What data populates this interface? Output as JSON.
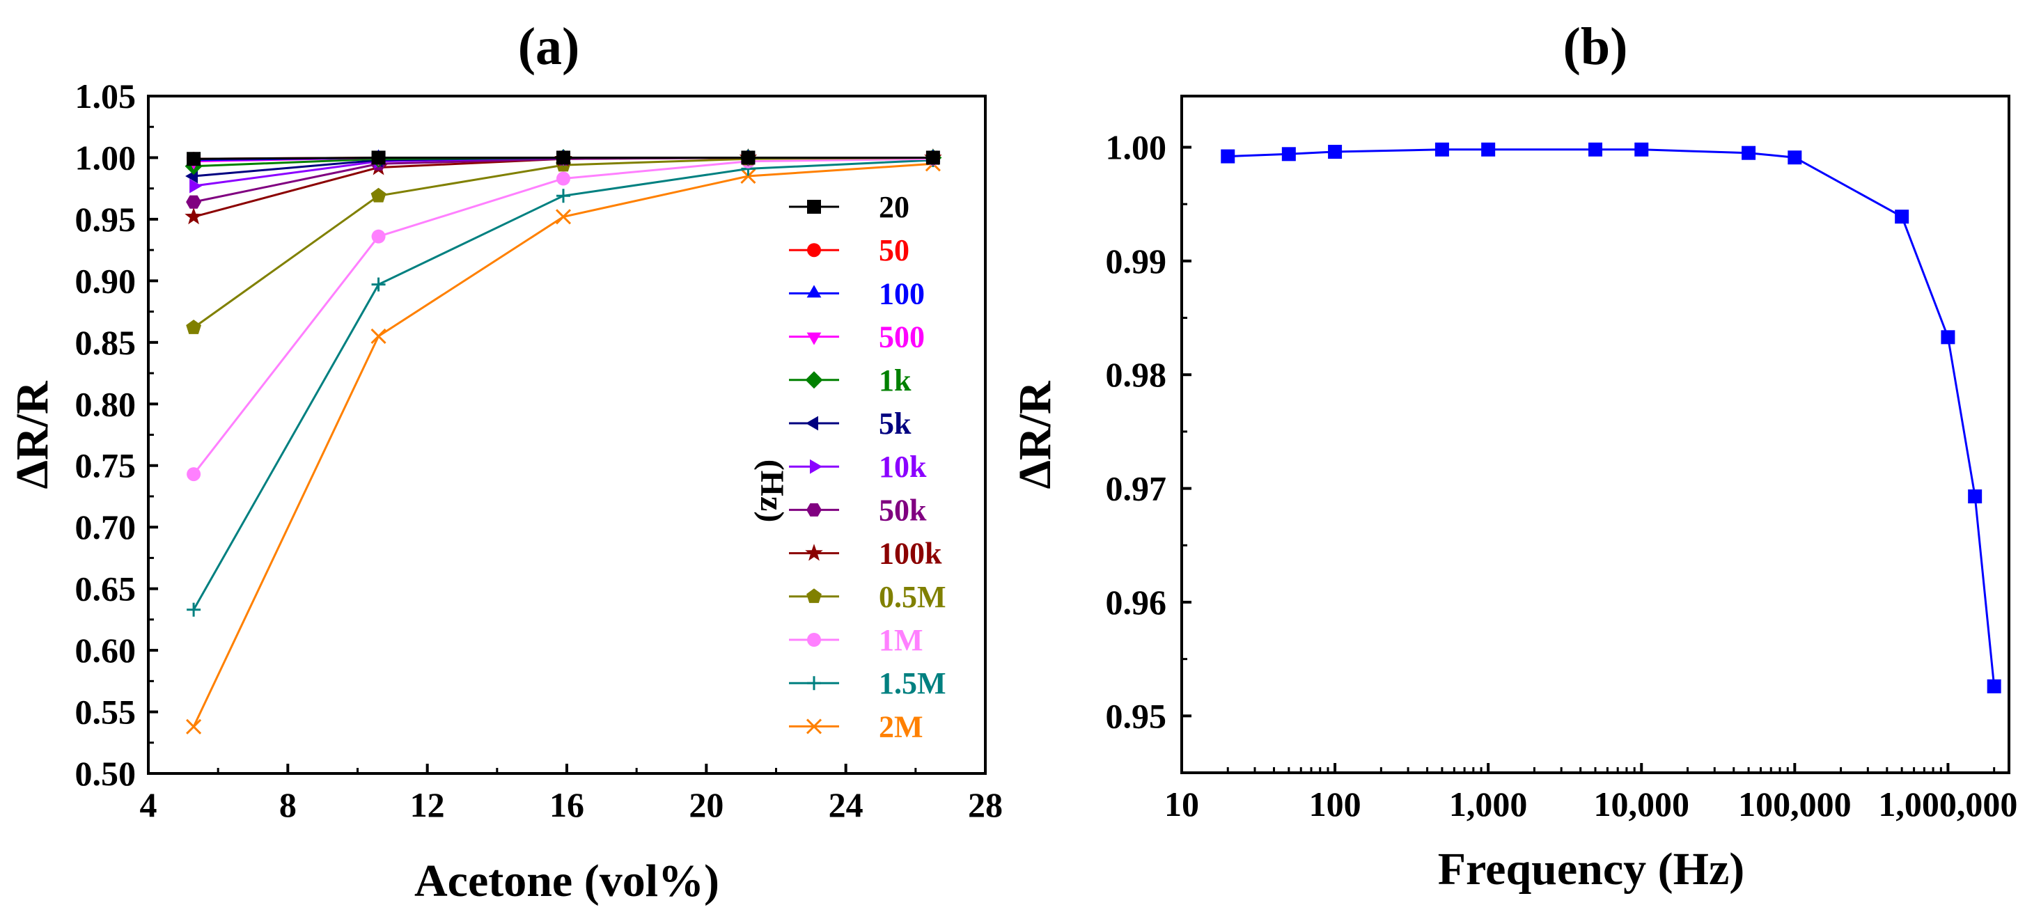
{
  "chart_data": [
    {
      "type": "line",
      "title": "(a)",
      "xlabel": "Acetone (vol%)",
      "ylabel": "ΔR/R",
      "xlim": [
        4,
        28
      ],
      "ylim": [
        0.5,
        1.05
      ],
      "xticks": [
        "4",
        "8",
        "12",
        "16",
        "20",
        "24",
        "28"
      ],
      "yticks": [
        "0.50",
        "0.55",
        "0.60",
        "0.65",
        "0.70",
        "0.75",
        "0.80",
        "0.85",
        "0.90",
        "0.95",
        "1.00",
        "1.05"
      ],
      "legend_unit": "(Hz)",
      "x": [
        5.3,
        10.6,
        15.9,
        21.2,
        26.5
      ],
      "series": [
        {
          "name": "20",
          "color": "#000000",
          "marker": "square",
          "values": [
            0.999,
            1.0,
            1.0,
            1.0,
            1.0
          ]
        },
        {
          "name": "50",
          "color": "#ff0000",
          "marker": "circle",
          "values": [
            0.999,
            1.0,
            1.0,
            1.0,
            1.0
          ]
        },
        {
          "name": "100",
          "color": "#0000ff",
          "marker": "triangle-up",
          "values": [
            0.998,
            1.0,
            1.0,
            1.0,
            1.0
          ]
        },
        {
          "name": "500",
          "color": "#ff00ff",
          "marker": "triangle-down",
          "values": [
            0.997,
            1.0,
            1.0,
            1.0,
            1.0
          ]
        },
        {
          "name": "1k",
          "color": "#008000",
          "marker": "diamond",
          "values": [
            0.993,
            0.999,
            1.0,
            1.0,
            1.0
          ]
        },
        {
          "name": "5k",
          "color": "#000080",
          "marker": "triangle-left",
          "values": [
            0.985,
            0.998,
            1.0,
            1.0,
            1.0
          ]
        },
        {
          "name": "10k",
          "color": "#8b00ff",
          "marker": "triangle-right",
          "values": [
            0.977,
            0.997,
            1.0,
            1.0,
            1.0
          ]
        },
        {
          "name": "50k",
          "color": "#800080",
          "marker": "hexagon",
          "values": [
            0.964,
            0.995,
            0.999,
            1.0,
            1.0
          ]
        },
        {
          "name": "100k",
          "color": "#8b0000",
          "marker": "star",
          "values": [
            0.952,
            0.992,
            0.999,
            1.0,
            1.0
          ]
        },
        {
          "name": "0.5M",
          "color": "#808000",
          "marker": "pentagon",
          "values": [
            0.862,
            0.969,
            0.994,
            0.999,
            1.0
          ]
        },
        {
          "name": "1M",
          "color": "#ff80ff",
          "marker": "circle",
          "values": [
            0.743,
            0.936,
            0.983,
            0.997,
            0.999
          ]
        },
        {
          "name": "1.5M",
          "color": "#008080",
          "marker": "plus",
          "values": [
            0.633,
            0.897,
            0.969,
            0.991,
            0.998
          ]
        },
        {
          "name": "2M",
          "color": "#ff8000",
          "marker": "x",
          "values": [
            0.538,
            0.855,
            0.952,
            0.985,
            0.995
          ]
        }
      ]
    },
    {
      "type": "line",
      "title": "(b)",
      "xlabel": "Frequency (Hz)",
      "ylabel": "ΔR/R",
      "xscale": "log",
      "xlim": [
        10,
        2500000
      ],
      "ylim": [
        0.945,
        1.0045
      ],
      "xticks": [
        {
          "v": 10,
          "label": "10"
        },
        {
          "v": 100,
          "label": "100"
        },
        {
          "v": 1000,
          "label": "1,000"
        },
        {
          "v": 10000,
          "label": "10,000"
        },
        {
          "v": 100000,
          "label": "100,000"
        },
        {
          "v": 1000000,
          "label": "1,000,000"
        }
      ],
      "yticks": [
        {
          "v": 0.95,
          "label": "0.95"
        },
        {
          "v": 0.96,
          "label": "0.96"
        },
        {
          "v": 0.97,
          "label": "0.97"
        },
        {
          "v": 0.98,
          "label": "0.98"
        },
        {
          "v": 0.99,
          "label": "0.99"
        },
        {
          "v": 1.0,
          "label": "1.00"
        }
      ],
      "series": [
        {
          "name": "ΔR/R",
          "color": "#0000ff",
          "marker": "square",
          "x": [
            20,
            50,
            100,
            500,
            1000,
            5000,
            10000,
            50000,
            100000,
            500000,
            1000000,
            1500000,
            2000000
          ],
          "values": [
            0.9992,
            0.9994,
            0.9996,
            0.9998,
            0.9998,
            0.9998,
            0.9998,
            0.9995,
            0.9991,
            0.9939,
            0.9833,
            0.9693,
            0.9526
          ]
        }
      ]
    }
  ]
}
